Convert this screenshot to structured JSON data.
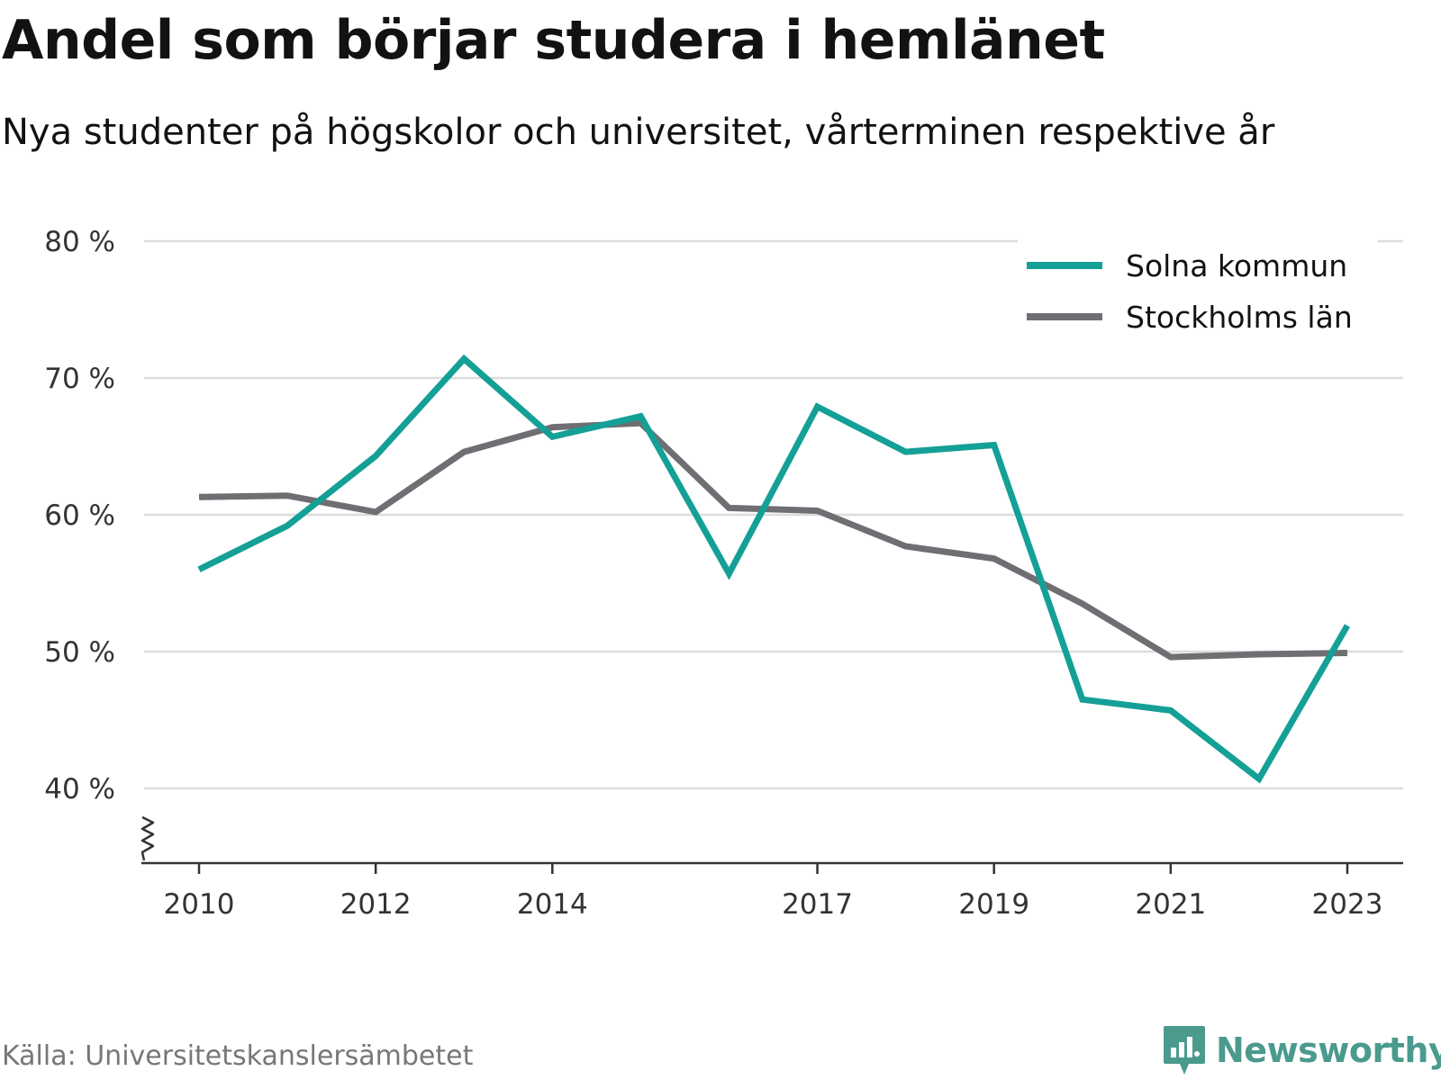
{
  "title": "Andel som börjar studera i hemlänet",
  "subtitle": "Nya studenter på högskolor och universitet, vårterminen respektive år",
  "source": "Källa: Universitetskanslersämbetet",
  "brand": {
    "name": "Newsworthy",
    "icon": "newsworthy-logo-icon",
    "color": "#4a9a8e"
  },
  "chart_data": {
    "type": "line",
    "title": "Andel som börjar studera i hemlänet",
    "subtitle": "Nya studenter på högskolor och universitet, vårterminen respektive år",
    "x": [
      2010,
      2011,
      2012,
      2013,
      2014,
      2015,
      2016,
      2017,
      2018,
      2019,
      2020,
      2021,
      2022,
      2023
    ],
    "x_ticks": [
      2010,
      2012,
      2014,
      2017,
      2019,
      2021,
      2023
    ],
    "x_tick_labels": [
      "2010",
      "2012",
      "2014",
      "2017",
      "2019",
      "2021",
      "2023"
    ],
    "y_ticks": [
      40,
      50,
      60,
      70,
      80
    ],
    "y_tick_labels": [
      "40 %",
      "50 %",
      "60 %",
      "70 %",
      "80 %"
    ],
    "ylim": [
      34.6,
      80
    ],
    "y_axis_break": true,
    "grid": "horizontal",
    "legend_position": "top-right",
    "series": [
      {
        "name": "Solna kommun",
        "color": "#14a096",
        "values": [
          56.0,
          59.2,
          64.3,
          71.4,
          65.7,
          67.2,
          55.7,
          67.9,
          64.6,
          65.1,
          46.5,
          45.7,
          40.7,
          51.9
        ]
      },
      {
        "name": "Stockholms län",
        "color": "#6e6e73",
        "values": [
          61.3,
          61.4,
          60.2,
          64.6,
          66.4,
          66.7,
          60.5,
          60.3,
          57.7,
          56.8,
          53.5,
          49.6,
          49.8,
          49.9
        ]
      }
    ]
  }
}
